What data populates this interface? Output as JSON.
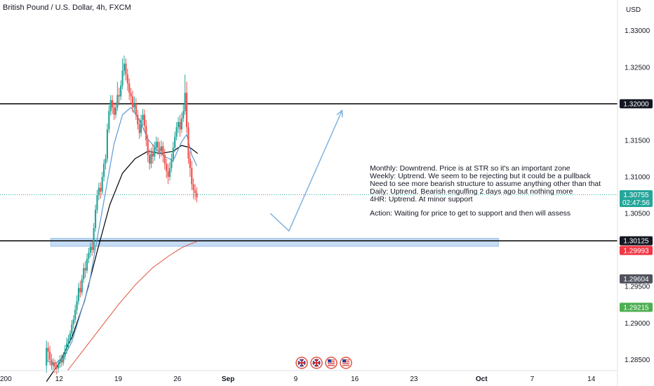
{
  "title": "British Pound / U.S. Dollar, 4h, FXCM",
  "currency": "USD",
  "colors": {
    "up": "#26a69a",
    "down": "#ef5350",
    "ma_fast": "#5b9bd5",
    "ma_mid": "#000000",
    "ma_slow": "#e0533f",
    "zone": "#bbd6f3",
    "arrow": "#7fb3e0",
    "last": "#26a69a"
  },
  "annotation": [
    "Monthly: Downtrend. Price is at STR so it's an important zone",
    "Weekly: Uptrend. We seem to be rejecting but it could be a pullback",
    "Need to see more bearish structure to assume anything other than that",
    "Daily: Uptrend. Bearish engulfing 2 days ago but nothing more",
    "4HR: Uptrend. At minor support",
    "",
    "Action: Waiting for price to get to support and then will assess"
  ],
  "chart_data": {
    "type": "candlestick",
    "title": "British Pound / U.S. Dollar, 4h, FXCM",
    "y_axis_ticks": [
      "1.33000",
      "1.32500",
      "1.31500",
      "1.31000",
      "1.30500",
      "1.29500",
      "1.29000",
      "1.28500"
    ],
    "ylim": [
      1.2835,
      1.3342
    ],
    "x_axis_ticks": [
      {
        "label": "200",
        "day": 5
      },
      {
        "label": "12",
        "day": 12
      },
      {
        "label": "19",
        "day": 19
      },
      {
        "label": "26",
        "day": 26
      },
      {
        "label": "Sep",
        "day": 32,
        "bold": true
      },
      {
        "label": "9",
        "day": 40
      },
      {
        "label": "16",
        "day": 47
      },
      {
        "label": "23",
        "day": 54
      },
      {
        "label": "Oct",
        "day": 62,
        "bold": true
      },
      {
        "label": "7",
        "day": 68
      },
      {
        "label": "14",
        "day": 75
      }
    ],
    "xlim": [
      5,
      77
    ],
    "price_badges": [
      {
        "label": "1.32000",
        "value": 1.32,
        "bg": "#131722"
      },
      {
        "label": "1.30755",
        "value": 1.30755,
        "bg": "#26a69a",
        "sub": "02:47:56"
      },
      {
        "label": "1.30125",
        "value": 1.30125,
        "bg": "#131722"
      },
      {
        "label": "1.29993",
        "value": 1.29993,
        "bg": "#f23645"
      },
      {
        "label": "1.29604",
        "value": 1.29604,
        "bg": "#50535e"
      },
      {
        "label": "1.29215",
        "value": 1.29215,
        "bg": "#4caf50"
      }
    ],
    "horizontal_lines": [
      1.32,
      1.30125
    ],
    "zone": {
      "from_day": 11,
      "to_day": 64,
      "low": 1.3005,
      "high": 1.3016
    },
    "projection": [
      {
        "day": 37,
        "value": 1.305
      },
      {
        "day": 39.2,
        "value": 1.3026
      },
      {
        "day": 45.5,
        "value": 1.3191
      }
    ],
    "last_price": 1.30755,
    "candles": [
      [
        10.5,
        1.2842,
        1.2866,
        1.2832,
        1.2876
      ],
      [
        10.7,
        1.2866,
        1.2861,
        1.2848,
        1.2874
      ],
      [
        10.9,
        1.2861,
        1.285,
        1.2842,
        1.2869
      ],
      [
        11.1,
        1.285,
        1.2842,
        1.2836,
        1.2858
      ],
      [
        11.3,
        1.2842,
        1.2846,
        1.2834,
        1.2852
      ],
      [
        11.5,
        1.2846,
        1.284,
        1.2832,
        1.285
      ],
      [
        11.7,
        1.284,
        1.2838,
        1.283,
        1.2846
      ],
      [
        11.9,
        1.2838,
        1.2845,
        1.2832,
        1.285
      ],
      [
        12.1,
        1.2845,
        1.285,
        1.2839,
        1.2856
      ],
      [
        12.3,
        1.285,
        1.2846,
        1.284,
        1.2857
      ],
      [
        12.5,
        1.2846,
        1.2855,
        1.2842,
        1.286
      ],
      [
        12.7,
        1.2855,
        1.2864,
        1.285,
        1.287
      ],
      [
        12.9,
        1.2864,
        1.2872,
        1.2858,
        1.288
      ],
      [
        13.1,
        1.2872,
        1.2878,
        1.2865,
        1.2884
      ],
      [
        13.3,
        1.2878,
        1.2886,
        1.2873,
        1.289
      ],
      [
        13.5,
        1.2886,
        1.2898,
        1.2881,
        1.2904
      ],
      [
        13.7,
        1.2898,
        1.2905,
        1.2892,
        1.2911
      ],
      [
        13.9,
        1.2905,
        1.2918,
        1.29,
        1.2925
      ],
      [
        14.1,
        1.2918,
        1.293,
        1.2912,
        1.2938
      ],
      [
        14.3,
        1.293,
        1.2948,
        1.2925,
        1.2955
      ],
      [
        14.5,
        1.2948,
        1.2942,
        1.2935,
        1.2958
      ],
      [
        14.7,
        1.2942,
        1.296,
        1.2938,
        1.2966
      ],
      [
        14.9,
        1.296,
        1.2975,
        1.2955,
        1.2982
      ],
      [
        15.1,
        1.2975,
        1.2972,
        1.2962,
        1.2985
      ],
      [
        15.3,
        1.2972,
        1.2988,
        1.2968,
        1.2995
      ],
      [
        15.5,
        1.2988,
        1.2996,
        1.2982,
        1.3003
      ],
      [
        15.7,
        1.2996,
        1.3004,
        1.299,
        1.301
      ],
      [
        15.9,
        1.3004,
        1.3,
        1.2992,
        1.3012
      ],
      [
        16.1,
        1.3,
        1.303,
        1.2996,
        1.3037
      ],
      [
        16.3,
        1.303,
        1.3055,
        1.3025,
        1.3062
      ],
      [
        16.5,
        1.3055,
        1.3075,
        1.305,
        1.3082
      ],
      [
        16.7,
        1.3075,
        1.3085,
        1.3068,
        1.3092
      ],
      [
        16.9,
        1.3085,
        1.308,
        1.307,
        1.3093
      ],
      [
        17.1,
        1.308,
        1.31,
        1.3076,
        1.3107
      ],
      [
        17.3,
        1.31,
        1.3118,
        1.3094,
        1.3124
      ],
      [
        17.5,
        1.3118,
        1.3125,
        1.311,
        1.3131
      ],
      [
        17.7,
        1.3125,
        1.3165,
        1.312,
        1.3173
      ],
      [
        17.9,
        1.3165,
        1.319,
        1.316,
        1.3198
      ],
      [
        18.1,
        1.319,
        1.3205,
        1.3184,
        1.3212
      ],
      [
        18.3,
        1.3205,
        1.3195,
        1.3186,
        1.3212
      ],
      [
        18.5,
        1.3195,
        1.3185,
        1.3178,
        1.3202
      ],
      [
        18.7,
        1.3185,
        1.3195,
        1.318,
        1.3202
      ],
      [
        18.9,
        1.3195,
        1.3212,
        1.319,
        1.323
      ],
      [
        19.1,
        1.3212,
        1.321,
        1.3198,
        1.3222
      ],
      [
        19.3,
        1.321,
        1.3225,
        1.3205,
        1.3232
      ],
      [
        19.5,
        1.3225,
        1.3245,
        1.322,
        1.3262
      ],
      [
        19.7,
        1.3245,
        1.3255,
        1.3238,
        1.3266
      ],
      [
        19.9,
        1.3255,
        1.324,
        1.3232,
        1.3262
      ],
      [
        20.1,
        1.324,
        1.3228,
        1.3218,
        1.3248
      ],
      [
        20.3,
        1.3228,
        1.3215,
        1.3205,
        1.3235
      ],
      [
        20.5,
        1.3215,
        1.321,
        1.32,
        1.3222
      ],
      [
        20.7,
        1.321,
        1.3195,
        1.3188,
        1.3218
      ],
      [
        20.9,
        1.3195,
        1.32,
        1.3188,
        1.321
      ],
      [
        21.1,
        1.32,
        1.3185,
        1.3178,
        1.3208
      ],
      [
        21.3,
        1.3185,
        1.3172,
        1.3165,
        1.3192
      ],
      [
        21.5,
        1.3172,
        1.316,
        1.3152,
        1.318
      ],
      [
        21.7,
        1.316,
        1.3178,
        1.3155,
        1.3185
      ],
      [
        21.9,
        1.3178,
        1.3185,
        1.317,
        1.3193
      ],
      [
        22.1,
        1.3185,
        1.317,
        1.3162,
        1.3192
      ],
      [
        22.3,
        1.317,
        1.315,
        1.3142,
        1.3178
      ],
      [
        22.5,
        1.315,
        1.313,
        1.312,
        1.3158
      ],
      [
        22.7,
        1.313,
        1.3118,
        1.311,
        1.3138
      ],
      [
        22.9,
        1.3118,
        1.3132,
        1.3112,
        1.314
      ],
      [
        23.1,
        1.3132,
        1.3128,
        1.3118,
        1.3145
      ],
      [
        23.3,
        1.3128,
        1.314,
        1.3122,
        1.3148
      ],
      [
        23.5,
        1.314,
        1.3148,
        1.3132,
        1.3155
      ],
      [
        23.7,
        1.3148,
        1.314,
        1.313,
        1.3154
      ],
      [
        23.9,
        1.314,
        1.3135,
        1.3125,
        1.3148
      ],
      [
        24.1,
        1.3135,
        1.3142,
        1.3128,
        1.315
      ],
      [
        24.3,
        1.3142,
        1.313,
        1.312,
        1.3148
      ],
      [
        24.5,
        1.313,
        1.3118,
        1.311,
        1.3138
      ],
      [
        24.7,
        1.3118,
        1.3108,
        1.3098,
        1.3125
      ],
      [
        24.9,
        1.3108,
        1.31,
        1.309,
        1.3118
      ],
      [
        25.1,
        1.31,
        1.3112,
        1.3095,
        1.312
      ],
      [
        25.3,
        1.3112,
        1.3125,
        1.3106,
        1.3132
      ],
      [
        25.5,
        1.3125,
        1.314,
        1.312,
        1.3148
      ],
      [
        25.7,
        1.314,
        1.3155,
        1.3134,
        1.3162
      ],
      [
        25.9,
        1.3155,
        1.3168,
        1.315,
        1.3175
      ],
      [
        26.1,
        1.3168,
        1.3175,
        1.316,
        1.3182
      ],
      [
        26.3,
        1.3175,
        1.3165,
        1.3155,
        1.3185
      ],
      [
        26.5,
        1.3165,
        1.318,
        1.316,
        1.3188
      ],
      [
        26.7,
        1.318,
        1.319,
        1.3175,
        1.32
      ],
      [
        26.9,
        1.319,
        1.3215,
        1.3185,
        1.324
      ],
      [
        27.1,
        1.3215,
        1.3168,
        1.316,
        1.323
      ],
      [
        27.3,
        1.3168,
        1.3125,
        1.3118,
        1.3175
      ],
      [
        27.5,
        1.3125,
        1.3112,
        1.31,
        1.3135
      ],
      [
        27.7,
        1.3112,
        1.309,
        1.3082,
        1.3122
      ],
      [
        27.9,
        1.309,
        1.3082,
        1.307,
        1.3098
      ],
      [
        28.1,
        1.3082,
        1.3078,
        1.3068,
        1.309
      ],
      [
        28.3,
        1.3078,
        1.3072,
        1.3065,
        1.3086
      ]
    ],
    "ma_fast": [
      [
        10.5,
        1.2848
      ],
      [
        11.5,
        1.2845
      ],
      [
        12.5,
        1.2852
      ],
      [
        13.5,
        1.2874
      ],
      [
        14.5,
        1.2912
      ],
      [
        15.5,
        1.295
      ],
      [
        16.5,
        1.3015
      ],
      [
        17.5,
        1.308
      ],
      [
        18.5,
        1.3145
      ],
      [
        19.5,
        1.3185
      ],
      [
        20.5,
        1.3195
      ],
      [
        21.5,
        1.3178
      ],
      [
        22.5,
        1.3152
      ],
      [
        23.5,
        1.3138
      ],
      [
        24.5,
        1.3128
      ],
      [
        25.5,
        1.3122
      ],
      [
        26.5,
        1.3148
      ],
      [
        27.1,
        1.3158
      ],
      [
        27.7,
        1.313
      ],
      [
        28.3,
        1.3115
      ]
    ],
    "ma_mid": [
      [
        10.5,
        1.282
      ],
      [
        12.0,
        1.2845
      ],
      [
        13.5,
        1.288
      ],
      [
        15.0,
        1.293
      ],
      [
        16.5,
        1.2998
      ],
      [
        18.0,
        1.3062
      ],
      [
        19.5,
        1.3105
      ],
      [
        21.0,
        1.3125
      ],
      [
        22.5,
        1.3135
      ],
      [
        24.0,
        1.3132
      ],
      [
        25.5,
        1.3135
      ],
      [
        26.5,
        1.3143
      ],
      [
        27.5,
        1.314
      ],
      [
        28.4,
        1.3132
      ]
    ],
    "ma_slow": [
      [
        13.0,
        1.2835
      ],
      [
        15.0,
        1.2865
      ],
      [
        17.0,
        1.2895
      ],
      [
        19.0,
        1.2925
      ],
      [
        21.0,
        1.2952
      ],
      [
        23.0,
        1.2975
      ],
      [
        25.0,
        1.2992
      ],
      [
        26.5,
        1.3003
      ],
      [
        27.5,
        1.3008
      ],
      [
        28.4,
        1.3012
      ]
    ]
  },
  "events": [
    {
      "name": "flag-uk-icon"
    },
    {
      "name": "flag-uk-icon"
    },
    {
      "name": "flag-us-icon"
    },
    {
      "name": "flag-us-icon"
    }
  ]
}
